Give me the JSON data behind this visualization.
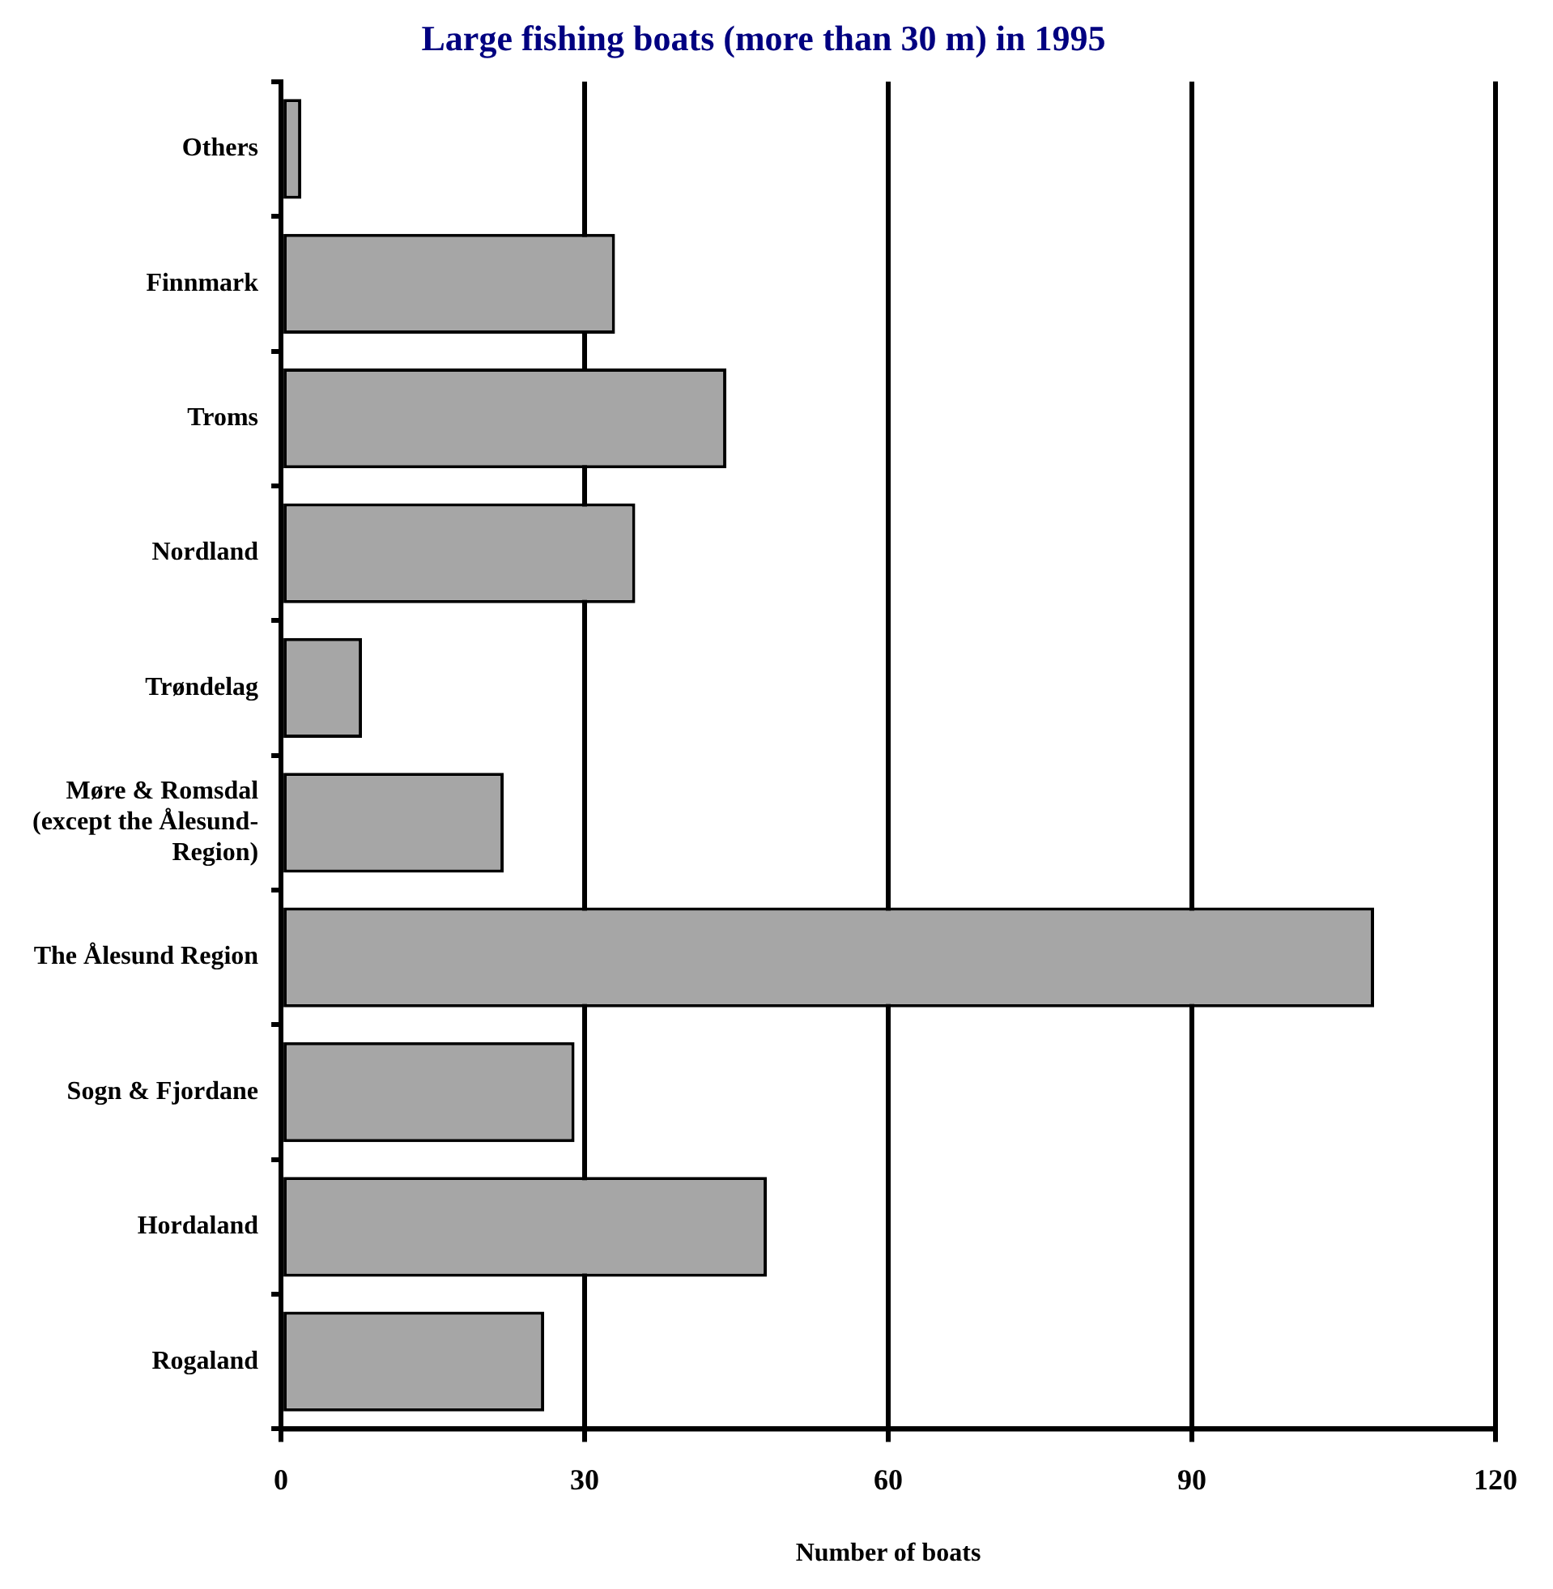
{
  "chart_data": {
    "type": "bar",
    "orientation": "horizontal",
    "title": "Large fishing boats (more than 30 m) in 1995",
    "xlabel": "Number of boats",
    "categories": [
      "Others",
      "Finnmark",
      "Troms",
      "Nordland",
      "Trøndelag",
      "Møre & Romsdal\n(except the Ålesund-\nRegion)",
      "The Ålesund Region",
      "Sogn & Fjordane",
      "Hordaland",
      "Rogaland"
    ],
    "values": [
      2,
      33,
      44,
      35,
      8,
      22,
      108,
      29,
      48,
      26
    ],
    "color": "#a6a6a6",
    "xlim": [
      0,
      120
    ],
    "xticks": [
      0,
      30,
      60,
      90,
      120
    ],
    "grid": "x",
    "legend": false
  }
}
